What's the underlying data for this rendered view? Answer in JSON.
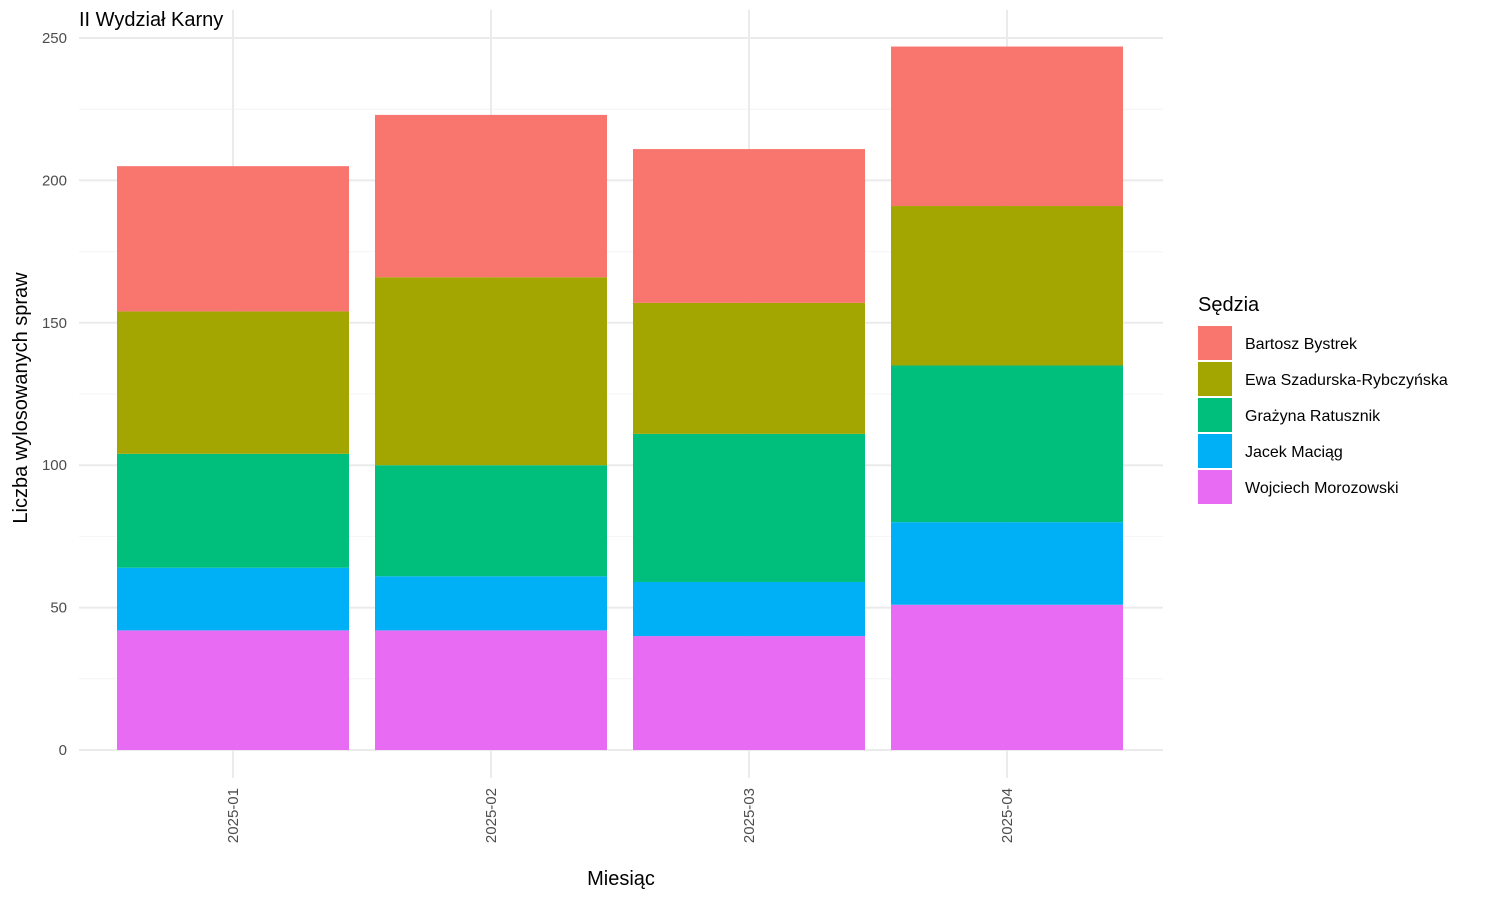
{
  "chart_data": {
    "type": "bar",
    "stacked": true,
    "title": "II Wydział Karny",
    "xlabel": "Miesiąc",
    "ylabel": "Liczba wylosowanych spraw",
    "categories": [
      "2025-01",
      "2025-02",
      "2025-03",
      "2025-04"
    ],
    "ylim": [
      0,
      250
    ],
    "yticks": [
      0,
      50,
      100,
      150,
      200,
      250
    ],
    "grid": true,
    "legend": {
      "title": "Sędzia",
      "position": "right"
    },
    "series": [
      {
        "name": "Wojciech Morozowski",
        "color": "#E76BF3",
        "values": [
          42,
          42,
          40,
          51
        ]
      },
      {
        "name": "Jacek Maciąg",
        "color": "#00B0F6",
        "values": [
          22,
          19,
          19,
          29
        ]
      },
      {
        "name": "Grażyna Ratusznik",
        "color": "#00BF7D",
        "values": [
          40,
          39,
          52,
          55
        ]
      },
      {
        "name": "Ewa Szadurska-Rybczyńska",
        "color": "#A3A500",
        "values": [
          50,
          66,
          46,
          56
        ]
      },
      {
        "name": "Bartosz Bystrek",
        "color": "#F8766D",
        "values": [
          51,
          57,
          54,
          56
        ]
      }
    ],
    "legend_order": [
      "Bartosz Bystrek",
      "Ewa Szadurska-Rybczyńska",
      "Grażyna Ratusznik",
      "Jacek Maciąg",
      "Wojciech Morozowski"
    ]
  }
}
